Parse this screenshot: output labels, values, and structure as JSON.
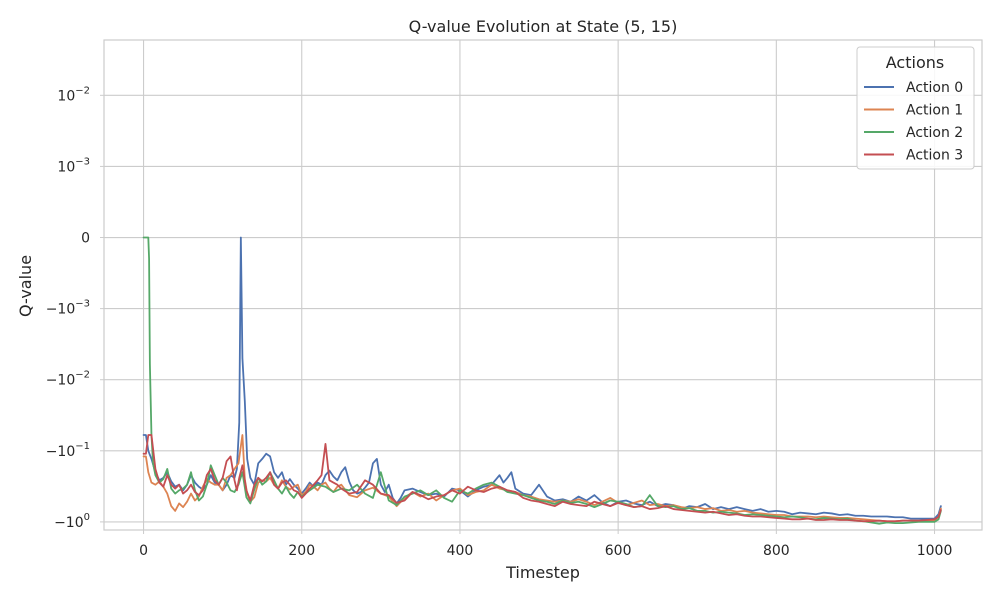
{
  "chart_data": {
    "type": "line",
    "title": "Q-value Evolution at State (5, 15)",
    "xlabel": "Timestep",
    "ylabel": "Q-value",
    "xlim": [
      -50,
      1060
    ],
    "ylim": [
      -1.3,
      0.06
    ],
    "yscale": "symlog",
    "symlog_linthresh": 0.001,
    "xticks": [
      0,
      200,
      400,
      600,
      800,
      1000
    ],
    "xtick_labels": [
      "0",
      "200",
      "400",
      "600",
      "800",
      "1000"
    ],
    "yticks": [
      0.01,
      0.001,
      0,
      -0.001,
      -0.01,
      -0.1,
      -1
    ],
    "ytick_main": [
      "10",
      "10",
      "0",
      "−10",
      "−10",
      "−10",
      "−10"
    ],
    "ytick_exp": [
      "−2",
      "−3",
      "",
      "−3",
      "−2",
      "−1",
      "0"
    ],
    "grid": true,
    "legend": {
      "title": "Actions",
      "placement": "top-right"
    },
    "series": [
      {
        "name": "Action 0",
        "color": "#4c72b0",
        "x": [
          0,
          3,
          6,
          10,
          15,
          20,
          25,
          30,
          35,
          40,
          45,
          50,
          55,
          60,
          65,
          70,
          75,
          80,
          85,
          90,
          95,
          100,
          105,
          110,
          115,
          118,
          121,
          123,
          125,
          128,
          131,
          135,
          140,
          145,
          150,
          155,
          160,
          165,
          170,
          175,
          180,
          185,
          190,
          195,
          200,
          205,
          210,
          215,
          220,
          225,
          230,
          235,
          240,
          245,
          250,
          255,
          260,
          265,
          270,
          275,
          280,
          285,
          290,
          295,
          300,
          305,
          310,
          315,
          320,
          325,
          330,
          340,
          350,
          360,
          370,
          380,
          390,
          400,
          410,
          420,
          430,
          440,
          450,
          455,
          460,
          465,
          470,
          480,
          490,
          500,
          510,
          520,
          530,
          540,
          550,
          560,
          570,
          580,
          590,
          600,
          610,
          620,
          630,
          640,
          650,
          660,
          670,
          680,
          690,
          700,
          710,
          720,
          730,
          740,
          750,
          760,
          770,
          780,
          790,
          800,
          810,
          820,
          830,
          840,
          850,
          860,
          870,
          880,
          890,
          900,
          910,
          920,
          930,
          940,
          950,
          960,
          970,
          980,
          990,
          1000,
          1005,
          1008
        ],
        "values": [
          -0.06,
          -0.06,
          -0.1,
          -0.13,
          -0.2,
          -0.26,
          -0.24,
          -0.2,
          -0.27,
          -0.32,
          -0.3,
          -0.36,
          -0.3,
          -0.22,
          -0.28,
          -0.32,
          -0.35,
          -0.3,
          -0.22,
          -0.28,
          -0.3,
          -0.36,
          -0.3,
          -0.22,
          -0.24,
          -0.18,
          -0.04,
          0.0,
          -0.005,
          -0.02,
          -0.13,
          -0.24,
          -0.3,
          -0.15,
          -0.13,
          -0.11,
          -0.12,
          -0.2,
          -0.24,
          -0.2,
          -0.3,
          -0.25,
          -0.3,
          -0.34,
          -0.4,
          -0.34,
          -0.28,
          -0.32,
          -0.28,
          -0.3,
          -0.22,
          -0.19,
          -0.23,
          -0.26,
          -0.2,
          -0.17,
          -0.27,
          -0.36,
          -0.4,
          -0.38,
          -0.33,
          -0.28,
          -0.15,
          -0.13,
          -0.3,
          -0.38,
          -0.3,
          -0.46,
          -0.55,
          -0.46,
          -0.36,
          -0.34,
          -0.38,
          -0.42,
          -0.4,
          -0.44,
          -0.34,
          -0.36,
          -0.44,
          -0.36,
          -0.32,
          -0.3,
          -0.22,
          -0.28,
          -0.24,
          -0.2,
          -0.34,
          -0.4,
          -0.42,
          -0.3,
          -0.44,
          -0.5,
          -0.48,
          -0.52,
          -0.44,
          -0.5,
          -0.42,
          -0.53,
          -0.6,
          -0.52,
          -0.5,
          -0.55,
          -0.58,
          -0.52,
          -0.6,
          -0.56,
          -0.58,
          -0.66,
          -0.6,
          -0.62,
          -0.56,
          -0.66,
          -0.62,
          -0.66,
          -0.62,
          -0.66,
          -0.7,
          -0.66,
          -0.72,
          -0.7,
          -0.72,
          -0.78,
          -0.74,
          -0.76,
          -0.78,
          -0.74,
          -0.76,
          -0.8,
          -0.78,
          -0.82,
          -0.82,
          -0.84,
          -0.84,
          -0.84,
          -0.86,
          -0.86,
          -0.9,
          -0.9,
          -0.9,
          -0.9,
          -0.78,
          -0.6
        ]
      },
      {
        "name": "Action 1",
        "color": "#dd8452",
        "x": [
          0,
          3,
          6,
          10,
          15,
          20,
          25,
          30,
          35,
          40,
          45,
          50,
          55,
          60,
          65,
          70,
          75,
          80,
          85,
          90,
          95,
          100,
          105,
          110,
          115,
          120,
          125,
          128,
          131,
          135,
          140,
          145,
          150,
          155,
          160,
          165,
          170,
          175,
          180,
          185,
          190,
          195,
          200,
          205,
          210,
          215,
          220,
          225,
          230,
          235,
          240,
          245,
          250,
          260,
          270,
          280,
          290,
          300,
          310,
          320,
          330,
          340,
          350,
          360,
          370,
          380,
          390,
          400,
          410,
          420,
          430,
          440,
          450,
          460,
          470,
          480,
          490,
          500,
          510,
          520,
          530,
          540,
          550,
          560,
          570,
          580,
          590,
          600,
          610,
          620,
          630,
          640,
          650,
          660,
          670,
          680,
          690,
          700,
          710,
          720,
          730,
          740,
          750,
          760,
          770,
          780,
          790,
          800,
          810,
          820,
          830,
          840,
          850,
          860,
          870,
          880,
          890,
          900,
          910,
          920,
          930,
          940,
          950,
          960,
          970,
          980,
          990,
          1000,
          1005,
          1008
        ],
        "values": [
          -0.12,
          -0.12,
          -0.2,
          -0.28,
          -0.3,
          -0.27,
          -0.32,
          -0.4,
          -0.6,
          -0.7,
          -0.55,
          -0.62,
          -0.52,
          -0.4,
          -0.5,
          -0.44,
          -0.32,
          -0.25,
          -0.28,
          -0.3,
          -0.3,
          -0.36,
          -0.24,
          -0.22,
          -0.18,
          -0.15,
          -0.06,
          -0.25,
          -0.4,
          -0.52,
          -0.45,
          -0.28,
          -0.26,
          -0.27,
          -0.24,
          -0.3,
          -0.34,
          -0.26,
          -0.32,
          -0.35,
          -0.32,
          -0.3,
          -0.42,
          -0.38,
          -0.3,
          -0.32,
          -0.36,
          -0.3,
          -0.28,
          -0.34,
          -0.38,
          -0.32,
          -0.3,
          -0.42,
          -0.45,
          -0.36,
          -0.33,
          -0.4,
          -0.44,
          -0.6,
          -0.46,
          -0.38,
          -0.44,
          -0.4,
          -0.5,
          -0.42,
          -0.36,
          -0.34,
          -0.42,
          -0.38,
          -0.36,
          -0.3,
          -0.34,
          -0.36,
          -0.38,
          -0.42,
          -0.44,
          -0.48,
          -0.5,
          -0.52,
          -0.5,
          -0.52,
          -0.48,
          -0.52,
          -0.58,
          -0.52,
          -0.46,
          -0.54,
          -0.58,
          -0.54,
          -0.5,
          -0.58,
          -0.56,
          -0.6,
          -0.58,
          -0.62,
          -0.64,
          -0.62,
          -0.66,
          -0.64,
          -0.7,
          -0.68,
          -0.72,
          -0.7,
          -0.74,
          -0.76,
          -0.78,
          -0.8,
          -0.8,
          -0.84,
          -0.84,
          -0.84,
          -0.86,
          -0.84,
          -0.86,
          -0.88,
          -0.88,
          -0.9,
          -0.92,
          -0.94,
          -0.96,
          -0.98,
          -0.98,
          -0.96,
          -0.96,
          -0.96,
          -0.96,
          -0.95,
          -0.85,
          -0.65
        ]
      },
      {
        "name": "Action 2",
        "color": "#55a868",
        "x": [
          0,
          2,
          4,
          5,
          6,
          7,
          8,
          10,
          12,
          15,
          20,
          25,
          30,
          35,
          40,
          45,
          50,
          55,
          60,
          65,
          70,
          75,
          80,
          85,
          90,
          95,
          100,
          105,
          110,
          115,
          120,
          125,
          130,
          135,
          140,
          145,
          150,
          155,
          160,
          165,
          170,
          175,
          180,
          185,
          190,
          195,
          200,
          210,
          220,
          230,
          240,
          250,
          260,
          270,
          280,
          290,
          300,
          310,
          320,
          330,
          340,
          350,
          360,
          370,
          380,
          390,
          400,
          410,
          420,
          430,
          440,
          450,
          460,
          470,
          480,
          490,
          500,
          510,
          520,
          530,
          540,
          550,
          560,
          570,
          580,
          590,
          600,
          610,
          620,
          630,
          640,
          650,
          660,
          670,
          680,
          690,
          700,
          710,
          720,
          730,
          740,
          750,
          760,
          770,
          780,
          790,
          800,
          810,
          820,
          830,
          840,
          850,
          860,
          870,
          880,
          890,
          900,
          910,
          920,
          930,
          940,
          950,
          960,
          970,
          980,
          990,
          1000,
          1005,
          1008
        ],
        "values": [
          0.0,
          0.0,
          0.0,
          0.0,
          0.0,
          -0.0003,
          -0.006,
          -0.06,
          -0.15,
          -0.22,
          -0.28,
          -0.25,
          -0.18,
          -0.34,
          -0.4,
          -0.36,
          -0.34,
          -0.3,
          -0.2,
          -0.36,
          -0.5,
          -0.44,
          -0.3,
          -0.16,
          -0.22,
          -0.3,
          -0.24,
          -0.28,
          -0.36,
          -0.38,
          -0.3,
          -0.2,
          -0.45,
          -0.55,
          -0.35,
          -0.24,
          -0.3,
          -0.27,
          -0.2,
          -0.26,
          -0.34,
          -0.4,
          -0.32,
          -0.4,
          -0.46,
          -0.38,
          -0.44,
          -0.36,
          -0.3,
          -0.32,
          -0.38,
          -0.34,
          -0.36,
          -0.3,
          -0.4,
          -0.46,
          -0.2,
          -0.5,
          -0.58,
          -0.44,
          -0.4,
          -0.36,
          -0.42,
          -0.36,
          -0.46,
          -0.52,
          -0.36,
          -0.4,
          -0.34,
          -0.3,
          -0.28,
          -0.32,
          -0.38,
          -0.4,
          -0.42,
          -0.46,
          -0.5,
          -0.52,
          -0.56,
          -0.5,
          -0.54,
          -0.52,
          -0.56,
          -0.62,
          -0.56,
          -0.5,
          -0.52,
          -0.56,
          -0.62,
          -0.6,
          -0.42,
          -0.6,
          -0.62,
          -0.6,
          -0.66,
          -0.64,
          -0.7,
          -0.7,
          -0.74,
          -0.72,
          -0.74,
          -0.76,
          -0.8,
          -0.78,
          -0.8,
          -0.82,
          -0.84,
          -0.86,
          -0.84,
          -0.86,
          -0.9,
          -0.92,
          -0.88,
          -0.9,
          -0.92,
          -0.9,
          -0.96,
          -0.98,
          -1.02,
          -1.06,
          -1.02,
          -1.04,
          -1.04,
          -1.02,
          -1.0,
          -1.0,
          -1.0,
          -0.92,
          -0.7
        ]
      },
      {
        "name": "Action 3",
        "color": "#c44e52",
        "x": [
          0,
          3,
          6,
          10,
          15,
          20,
          25,
          30,
          35,
          40,
          45,
          50,
          55,
          60,
          65,
          70,
          75,
          80,
          85,
          90,
          95,
          100,
          105,
          110,
          115,
          118,
          121,
          125,
          130,
          135,
          140,
          145,
          150,
          155,
          160,
          165,
          170,
          175,
          180,
          185,
          190,
          195,
          200,
          205,
          210,
          215,
          220,
          225,
          230,
          235,
          240,
          245,
          250,
          260,
          270,
          280,
          290,
          300,
          310,
          320,
          330,
          340,
          350,
          360,
          370,
          380,
          390,
          400,
          410,
          420,
          430,
          440,
          450,
          460,
          470,
          480,
          490,
          500,
          510,
          520,
          530,
          540,
          550,
          560,
          570,
          580,
          590,
          600,
          610,
          620,
          630,
          640,
          650,
          660,
          670,
          680,
          690,
          700,
          710,
          720,
          730,
          740,
          750,
          760,
          770,
          780,
          790,
          800,
          810,
          820,
          830,
          840,
          850,
          860,
          870,
          880,
          890,
          900,
          910,
          920,
          930,
          940,
          950,
          960,
          970,
          980,
          990,
          1000,
          1005,
          1008
        ],
        "values": [
          -0.11,
          -0.11,
          -0.06,
          -0.06,
          -0.18,
          -0.28,
          -0.32,
          -0.22,
          -0.3,
          -0.34,
          -0.3,
          -0.4,
          -0.36,
          -0.3,
          -0.38,
          -0.42,
          -0.36,
          -0.22,
          -0.18,
          -0.26,
          -0.3,
          -0.24,
          -0.14,
          -0.12,
          -0.26,
          -0.36,
          -0.24,
          -0.16,
          -0.36,
          -0.5,
          -0.3,
          -0.24,
          -0.27,
          -0.24,
          -0.2,
          -0.3,
          -0.34,
          -0.28,
          -0.26,
          -0.3,
          -0.36,
          -0.38,
          -0.46,
          -0.4,
          -0.34,
          -0.3,
          -0.26,
          -0.22,
          -0.08,
          -0.26,
          -0.28,
          -0.3,
          -0.34,
          -0.4,
          -0.38,
          -0.26,
          -0.3,
          -0.4,
          -0.42,
          -0.54,
          -0.5,
          -0.38,
          -0.42,
          -0.48,
          -0.44,
          -0.42,
          -0.36,
          -0.4,
          -0.32,
          -0.36,
          -0.38,
          -0.34,
          -0.32,
          -0.36,
          -0.38,
          -0.46,
          -0.5,
          -0.52,
          -0.56,
          -0.6,
          -0.52,
          -0.56,
          -0.58,
          -0.6,
          -0.52,
          -0.56,
          -0.6,
          -0.54,
          -0.58,
          -0.62,
          -0.6,
          -0.66,
          -0.64,
          -0.6,
          -0.66,
          -0.68,
          -0.7,
          -0.72,
          -0.74,
          -0.72,
          -0.76,
          -0.8,
          -0.78,
          -0.82,
          -0.84,
          -0.84,
          -0.86,
          -0.88,
          -0.9,
          -0.92,
          -0.92,
          -0.9,
          -0.94,
          -0.94,
          -0.92,
          -0.94,
          -0.94,
          -0.96,
          -0.98,
          -0.98,
          -0.96,
          -0.98,
          -0.98,
          -0.96,
          -0.96,
          -0.96,
          -0.94,
          -0.92,
          -0.85,
          -0.68
        ]
      }
    ]
  }
}
